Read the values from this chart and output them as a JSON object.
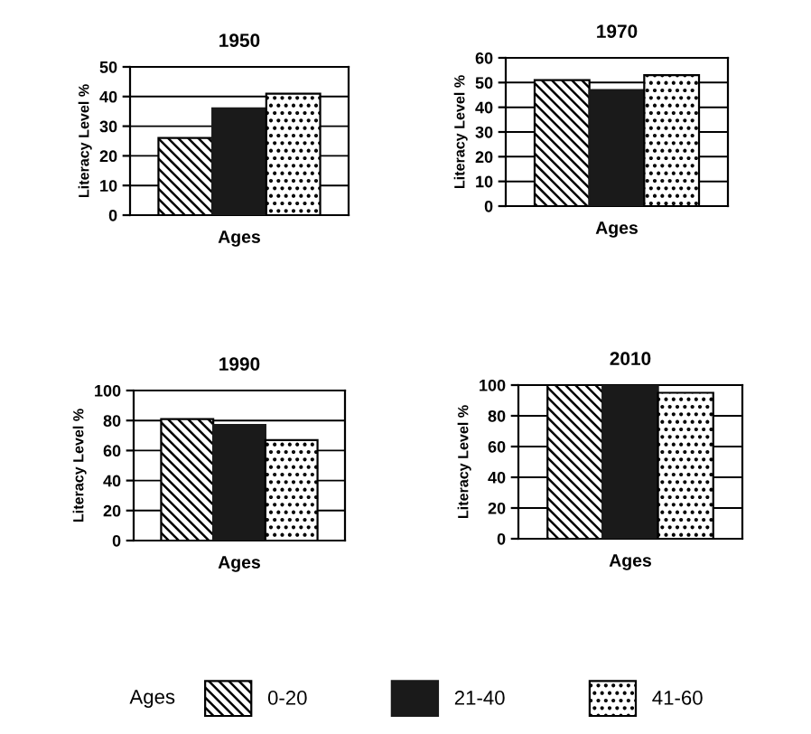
{
  "chart_data": [
    {
      "type": "bar",
      "title": "1950",
      "xlabel": "Ages",
      "ylabel": "Literacy Level %",
      "categories": [
        null
      ],
      "series": [
        {
          "color": "#000000",
          "values": [
            26
          ]
        },
        {
          "color": "#1a1a1a",
          "values": [
            36
          ]
        },
        {
          "color": "#000000",
          "values": [
            41
          ]
        }
      ],
      "ylim": [
        0,
        50
      ],
      "yticks": [
        0,
        10,
        20,
        30,
        40,
        50
      ],
      "grid": "y",
      "tick_labels": "y"
    },
    {
      "type": "bar",
      "title": "1970",
      "xlabel": "Ages",
      "ylabel": "Literacy Level %",
      "categories": [
        null
      ],
      "series": [
        {
          "color": "#000000",
          "values": [
            51
          ]
        },
        {
          "color": "#1a1a1a",
          "values": [
            47
          ]
        },
        {
          "color": "#000000",
          "values": [
            53
          ]
        }
      ],
      "ylim": [
        0,
        60
      ],
      "yticks": [
        0,
        10,
        20,
        30,
        40,
        50,
        60
      ],
      "grid": "y",
      "tick_labels": "y"
    },
    {
      "type": "bar",
      "title": "1990",
      "xlabel": "Ages",
      "ylabel": "Literacy Level %",
      "categories": [
        null
      ],
      "series": [
        {
          "color": "#000000",
          "values": [
            81
          ]
        },
        {
          "color": "#1a1a1a",
          "values": [
            77
          ]
        },
        {
          "color": "#000000",
          "values": [
            67
          ]
        }
      ],
      "ylim": [
        0,
        100
      ],
      "yticks": [
        0,
        20,
        40,
        60,
        80,
        100
      ],
      "grid": "y",
      "tick_labels": "y"
    },
    {
      "type": "bar",
      "title": "2010",
      "xlabel": "Ages",
      "ylabel": "Literacy Level %",
      "categories": [
        null
      ],
      "series": [
        {
          "name": "0-20",
          "color": "#000000",
          "values": [
            100
          ]
        },
        {
          "name": "21-40",
          "color": "#1a1a1a",
          "values": [
            100
          ]
        },
        {
          "name": "41-60",
          "color": "#000000",
          "values": [
            95
          ]
        }
      ],
      "ylim": [
        0,
        100
      ],
      "yticks": [
        0,
        20,
        40,
        60,
        80,
        100
      ],
      "grid": "y",
      "tick_labels": "y",
      "legend": "bottom",
      "legend_title": "Ages"
    }
  ]
}
